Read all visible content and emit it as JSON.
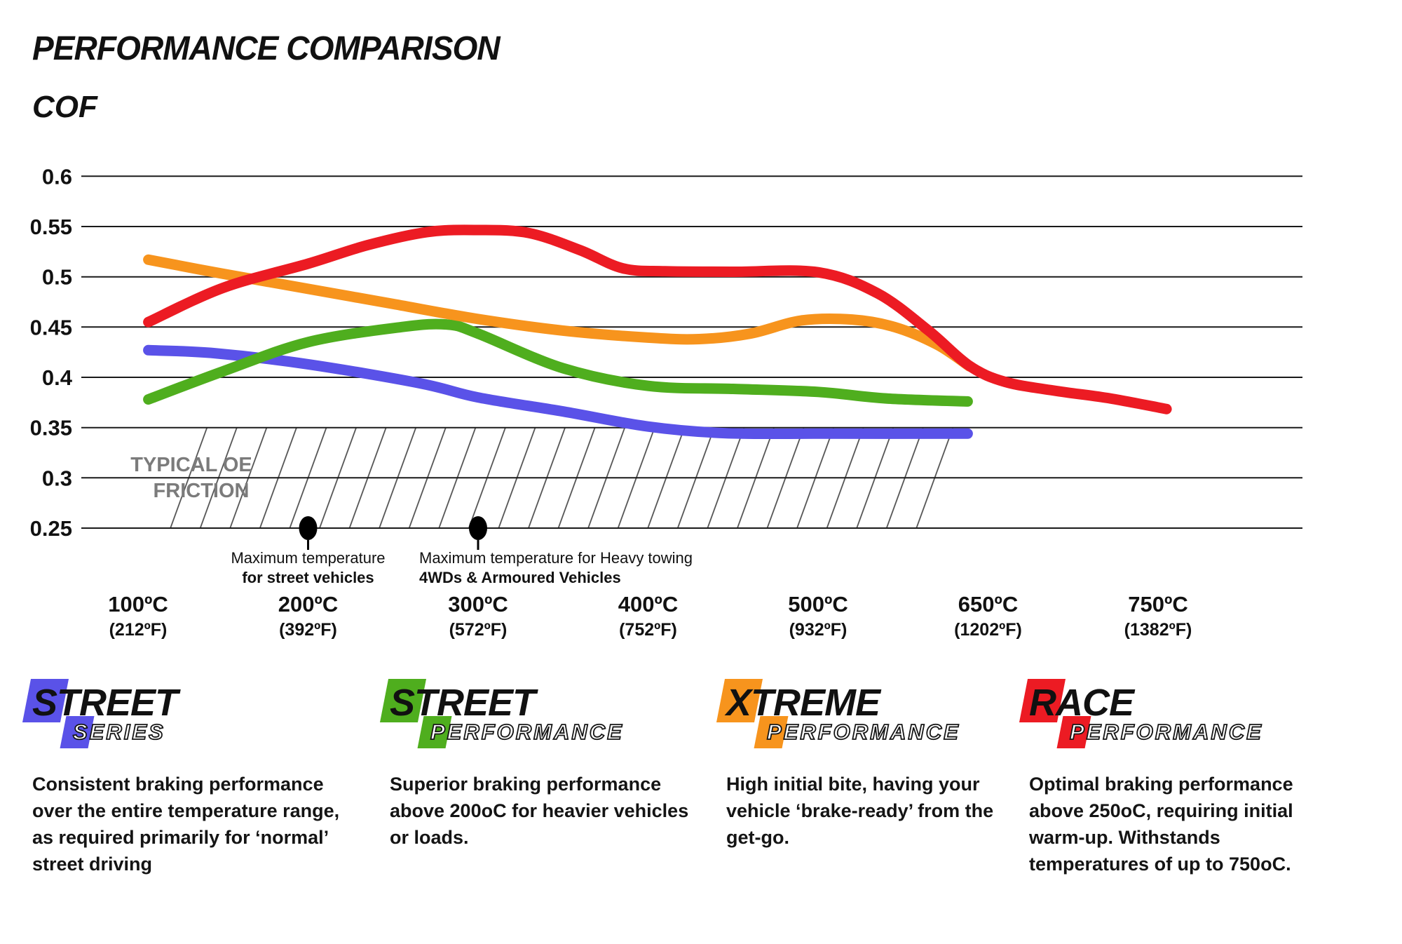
{
  "page": {
    "title": "PERFORMANCE COMPARISON"
  },
  "chart_data": {
    "type": "line",
    "title": "PERFORMANCE COMPARISON",
    "ylabel": "COF",
    "grid": "horizontal",
    "ylim": [
      0.25,
      0.6
    ],
    "y_ticks": [
      "0.6",
      "0.55",
      "0.5",
      "0.45",
      "0.4",
      "0.35",
      "0.3",
      "0.25"
    ],
    "y_tick_values": [
      0.6,
      0.55,
      0.5,
      0.45,
      0.4,
      0.35,
      0.3,
      0.25
    ],
    "x_ticks": [
      {
        "celsius": "100ºC",
        "fahrenheit": "(212ºF)"
      },
      {
        "celsius": "200ºC",
        "fahrenheit": "(392ºF)"
      },
      {
        "celsius": "300ºC",
        "fahrenheit": "(572ºF)"
      },
      {
        "celsius": "400ºC",
        "fahrenheit": "(752ºF)"
      },
      {
        "celsius": "500ºC",
        "fahrenheit": "(932ºF)"
      },
      {
        "celsius": "650ºC",
        "fahrenheit": "(1202ºF)"
      },
      {
        "celsius": "750ºC",
        "fahrenheit": "(1382ºF)"
      }
    ],
    "series": [
      {
        "name": "Street Series",
        "color": "#5A52E8",
        "points": [
          [
            0.06,
            0.427
          ],
          [
            0.45,
            0.424
          ],
          [
            1.0,
            0.413
          ],
          [
            1.66,
            0.394
          ],
          [
            2.0,
            0.38
          ],
          [
            2.5,
            0.366
          ],
          [
            3.0,
            0.351
          ],
          [
            3.45,
            0.3445
          ],
          [
            4.0,
            0.344
          ],
          [
            4.88,
            0.344
          ]
        ]
      },
      {
        "name": "Street Performance",
        "color": "#4FAE1E",
        "points": [
          [
            0.06,
            0.378
          ],
          [
            0.5,
            0.406
          ],
          [
            1.0,
            0.435
          ],
          [
            1.55,
            0.45
          ],
          [
            1.82,
            0.4525
          ],
          [
            2.0,
            0.4435
          ],
          [
            2.5,
            0.409
          ],
          [
            3.0,
            0.3915
          ],
          [
            3.5,
            0.3885
          ],
          [
            4.0,
            0.3855
          ],
          [
            4.4,
            0.379
          ],
          [
            4.88,
            0.376
          ]
        ]
      },
      {
        "name": "Xtreme Performance",
        "color": "#F7941D",
        "points": [
          [
            0.06,
            0.517
          ],
          [
            0.5,
            0.503
          ],
          [
            1.0,
            0.488
          ],
          [
            1.5,
            0.473
          ],
          [
            2.0,
            0.458
          ],
          [
            2.5,
            0.4465
          ],
          [
            3.0,
            0.4395
          ],
          [
            3.3,
            0.438
          ],
          [
            3.6,
            0.4435
          ],
          [
            3.9,
            0.4565
          ],
          [
            4.2,
            0.4575
          ],
          [
            4.45,
            0.45
          ],
          [
            4.7,
            0.4325
          ],
          [
            4.89,
            0.411
          ]
        ]
      },
      {
        "name": "Race Performance",
        "color": "#EC1B23",
        "points": [
          [
            0.06,
            0.455
          ],
          [
            0.5,
            0.489
          ],
          [
            1.0,
            0.513
          ],
          [
            1.35,
            0.5315
          ],
          [
            1.7,
            0.5445
          ],
          [
            2.0,
            0.5465
          ],
          [
            2.3,
            0.5435
          ],
          [
            2.6,
            0.5265
          ],
          [
            2.85,
            0.5085
          ],
          [
            3.1,
            0.5055
          ],
          [
            3.5,
            0.505
          ],
          [
            4.0,
            0.5045
          ],
          [
            4.35,
            0.4835
          ],
          [
            4.65,
            0.4465
          ],
          [
            4.89,
            0.4115
          ],
          [
            5.1,
            0.3955
          ],
          [
            5.4,
            0.3865
          ],
          [
            5.7,
            0.3795
          ],
          [
            6.05,
            0.3685
          ]
        ]
      }
    ],
    "oe_band": {
      "label_line1": "TYPICAL OE",
      "label_line2": "FRICTION",
      "y_top": 0.35,
      "y_bottom": 0.25,
      "x_start_cat": 0.26,
      "x_end_cat": 4.91
    },
    "annotations": [
      {
        "marker_cat": 1,
        "align": "center",
        "line1": "Maximum temperature",
        "line2": "for street vehicles"
      },
      {
        "marker_cat": 2,
        "align": "left",
        "line1": "Maximum temperature for Heavy towing",
        "line2": "4WDs & Armoured Vehicles"
      }
    ]
  },
  "legend": {
    "items": [
      {
        "main": "STREET",
        "sub": "SERIES",
        "color": "#5A52E8",
        "description": "Consistent braking performance over the entire temperature range, as required primarily for ‘normal’ street driving"
      },
      {
        "main": "STREET",
        "sub": "PERFORMANCE",
        "color": "#4FAE1E",
        "description": "Superior braking performance above 200oC for heavier vehicles or loads."
      },
      {
        "main": "XTREME",
        "sub": "PERFORMANCE",
        "color": "#F7941D",
        "description": "High initial bite, having your vehicle ‘brake-ready’ from the get-go."
      },
      {
        "main": "RACE",
        "sub": "PERFORMANCE",
        "color": "#EC1B23",
        "description": "Optimal braking performance above 250oC, requiring initial warm-up. Withstands temperatures of up to 750oC."
      }
    ]
  }
}
